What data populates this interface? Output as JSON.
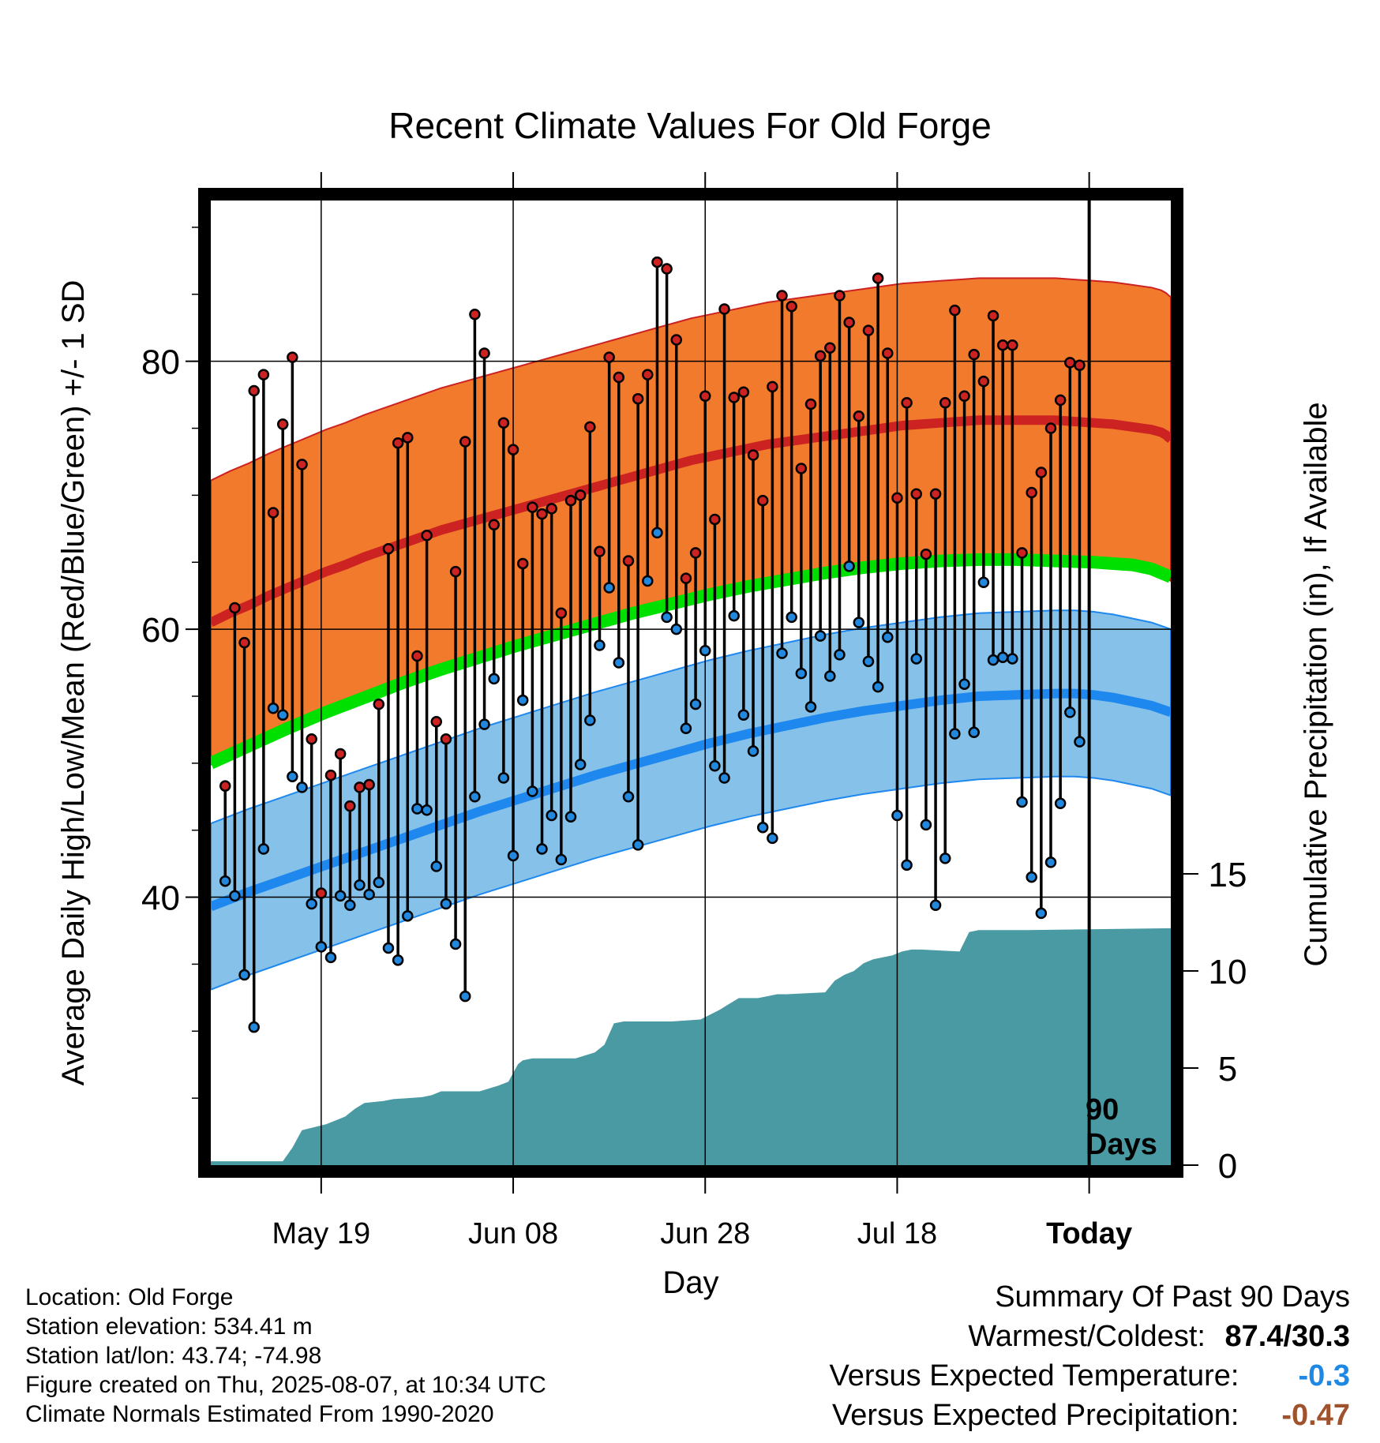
{
  "title": "Recent Climate Values For Old Forge",
  "ylabel_left": "Average Daily High/Low/Mean (Red/Blue/Green) +/- 1 SD",
  "ylabel_right": "Cumulative Precipitation (in), If Available",
  "xlabel": "Day",
  "marker_label_1": "90",
  "marker_label_2": "Days",
  "info": {
    "location": "Location: Old Forge",
    "elevation": "Station elevation: 534.41 m",
    "latlon": "Station lat/lon: 43.74; -74.98",
    "created": "Figure created on Thu, 2025-08-07, at 10:34 UTC",
    "normals": "Climate Normals Estimated From 1990-2020"
  },
  "summary": {
    "heading": "Summary Of Past 90 Days",
    "warm_cold_label": "Warmest/Coldest:",
    "warm_cold_value": "87.4/30.3",
    "temp_label": "Versus Expected Temperature:",
    "temp_value": "-0.3",
    "precip_label": "Versus Expected Precipitation:",
    "precip_value": "-0.47",
    "temp_color": "#1e88e5",
    "precip_color": "#a0522d"
  },
  "colors": {
    "high_band": "#f27a2c",
    "high_line": "#cc2222",
    "mean_line": "#00e000",
    "low_band": "#85c1e9",
    "low_line": "#1e88ee",
    "precip": "#4a9aa3",
    "high_dot": "#cc2222",
    "low_dot": "#2288dd"
  },
  "chart_data": {
    "type": "line",
    "x_ticks": [
      {
        "day": 11.5,
        "label": "May 19"
      },
      {
        "day": 31.5,
        "label": "Jun 08"
      },
      {
        "day": 51.5,
        "label": "Jun 28"
      },
      {
        "day": 71.5,
        "label": "Jul 18"
      },
      {
        "day": 91.5,
        "label": "Today"
      }
    ],
    "xlim": [
      0,
      100
    ],
    "ylim_temp": [
      20,
      92
    ],
    "y_ticks_temp": [
      40,
      60,
      80
    ],
    "ylim_precip": [
      0,
      15
    ],
    "y_ticks_precip": [
      0,
      5,
      10,
      15
    ],
    "today_day": 91.5,
    "daily_high": [
      48.3,
      61.6,
      59.0,
      77.8,
      79.0,
      68.7,
      75.3,
      80.3,
      72.3,
      51.8,
      40.3,
      49.1,
      50.7,
      46.8,
      48.2,
      48.4,
      54.4,
      66.0,
      73.9,
      74.3,
      58.0,
      67.0,
      53.1,
      51.8,
      64.3,
      74.0,
      83.5,
      80.6,
      67.8,
      75.4,
      73.4,
      64.9,
      69.1,
      68.6,
      69.0,
      61.2,
      69.6,
      70.0,
      75.1,
      65.8,
      80.3,
      78.8,
      65.1,
      77.2,
      79.0,
      87.4,
      86.9,
      81.6,
      63.8,
      65.7,
      77.4,
      68.2,
      83.9,
      77.3,
      77.7,
      73.0,
      69.6,
      78.1,
      84.9,
      84.1,
      72.0,
      76.8,
      80.4,
      81.0,
      84.9,
      82.9,
      75.9,
      82.3,
      86.2,
      80.6,
      69.8,
      76.9,
      70.1,
      65.6,
      70.1,
      76.9,
      83.8,
      77.4,
      80.5,
      78.5,
      83.4,
      81.2,
      81.2,
      65.7,
      70.2,
      71.7,
      75.0,
      77.1,
      79.9,
      79.7
    ],
    "daily_low": [
      41.2,
      40.1,
      34.2,
      30.3,
      43.6,
      54.1,
      53.6,
      49.0,
      48.2,
      39.5,
      36.3,
      35.5,
      40.1,
      39.4,
      40.9,
      40.2,
      41.1,
      36.2,
      35.3,
      38.6,
      46.6,
      46.5,
      42.3,
      39.5,
      36.5,
      32.6,
      47.5,
      52.9,
      56.3,
      48.9,
      43.1,
      54.7,
      47.9,
      43.6,
      46.1,
      42.8,
      46.0,
      49.9,
      53.2,
      58.8,
      63.1,
      57.5,
      47.5,
      43.9,
      63.6,
      67.2,
      60.9,
      60.0,
      52.6,
      54.4,
      58.4,
      49.8,
      48.9,
      61.0,
      53.6,
      50.9,
      45.2,
      44.4,
      58.2,
      60.9,
      56.7,
      54.2,
      59.5,
      56.5,
      58.1,
      64.7,
      60.5,
      57.6,
      55.7,
      59.4,
      46.1,
      42.4,
      57.8,
      45.4,
      39.4,
      42.9,
      52.2,
      55.9,
      52.3,
      63.5,
      57.7,
      57.9,
      57.8,
      47.1,
      41.5,
      38.8,
      42.6,
      47.0,
      53.8,
      51.6
    ],
    "normal_high": [
      60.5,
      61.2,
      61.8,
      62.5,
      63.1,
      63.7,
      64.3,
      64.8,
      65.4,
      65.9,
      66.4,
      66.9,
      67.4,
      67.8,
      68.2,
      68.6,
      69.0,
      69.4,
      69.8,
      70.2,
      70.6,
      71.0,
      71.4,
      71.8,
      72.2,
      72.6,
      72.9,
      73.2,
      73.5,
      73.8,
      74.0,
      74.2,
      74.4,
      74.6,
      74.8,
      75.0,
      75.2,
      75.3,
      75.4,
      75.5,
      75.6,
      75.6,
      75.6,
      75.6,
      75.6,
      75.5,
      75.4,
      75.3,
      75.1,
      74.9,
      74.7,
      74.5,
      74.3,
      74.2
    ],
    "normal_high_days": [
      0,
      2,
      4,
      6,
      8,
      10,
      12,
      14,
      16,
      18,
      20,
      22,
      24,
      26,
      28,
      30,
      32,
      34,
      36,
      38,
      40,
      42,
      44,
      46,
      48,
      50,
      52,
      54,
      56,
      58,
      60,
      62,
      64,
      66,
      68,
      70,
      72,
      74,
      76,
      78,
      80,
      82,
      84,
      86,
      88,
      90,
      92,
      94,
      96,
      98,
      99,
      99.5,
      99.8,
      100
    ],
    "high_sd": 10.6,
    "normal_mean": [
      50.0,
      51.3,
      52.6,
      53.8,
      54.9,
      56.0,
      57.0,
      57.9,
      58.8,
      59.6,
      60.4,
      61.2,
      61.9,
      62.6,
      63.2,
      63.7,
      64.2,
      64.6,
      64.9,
      65.1,
      65.2,
      65.2,
      65.1,
      65.0,
      64.8,
      64.5,
      63.9
    ],
    "normal_mean_days": [
      0,
      4,
      8,
      12,
      16,
      20,
      24,
      28,
      32,
      36,
      40,
      44,
      48,
      52,
      56,
      60,
      64,
      68,
      72,
      76,
      80,
      84,
      88,
      92,
      96,
      98,
      100
    ],
    "normal_low": [
      39.3,
      40.4,
      41.4,
      42.4,
      43.4,
      44.4,
      45.4,
      46.4,
      47.3,
      48.2,
      49.1,
      49.9,
      50.7,
      51.5,
      52.2,
      52.8,
      53.4,
      53.9,
      54.3,
      54.7,
      55.0,
      55.1,
      55.2,
      55.2,
      55.1,
      54.9,
      54.6,
      54.3,
      53.8
    ],
    "normal_low_days": [
      0,
      4,
      8,
      12,
      16,
      20,
      24,
      28,
      32,
      36,
      40,
      44,
      48,
      52,
      56,
      60,
      64,
      68,
      72,
      76,
      80,
      84,
      88,
      90,
      92,
      94,
      96,
      98,
      100
    ],
    "low_sd": 6.2,
    "precip_days": [
      0,
      7.5,
      8.5,
      9.5,
      12,
      13,
      14,
      15,
      16,
      18,
      19,
      22,
      23,
      24,
      28,
      30,
      31,
      32,
      32.5,
      33.5,
      38,
      40,
      41,
      42,
      43,
      48,
      51,
      53,
      54,
      55,
      57,
      58,
      59,
      60,
      64,
      65,
      66,
      67,
      68,
      69,
      70,
      71,
      72,
      73,
      74,
      78,
      79,
      80,
      81,
      85,
      100
    ],
    "precip_values": [
      0.2,
      0.2,
      0.9,
      1.8,
      2.1,
      2.3,
      2.5,
      2.9,
      3.2,
      3.3,
      3.4,
      3.5,
      3.6,
      3.8,
      3.8,
      4.1,
      4.3,
      5.2,
      5.4,
      5.5,
      5.5,
      5.8,
      6.2,
      7.3,
      7.4,
      7.4,
      7.5,
      8.0,
      8.3,
      8.6,
      8.6,
      8.7,
      8.8,
      8.8,
      8.9,
      9.5,
      9.8,
      10.0,
      10.4,
      10.6,
      10.7,
      10.8,
      11.0,
      11.1,
      11.1,
      11.0,
      12.0,
      12.1,
      12.1,
      12.1,
      12.2
    ]
  }
}
